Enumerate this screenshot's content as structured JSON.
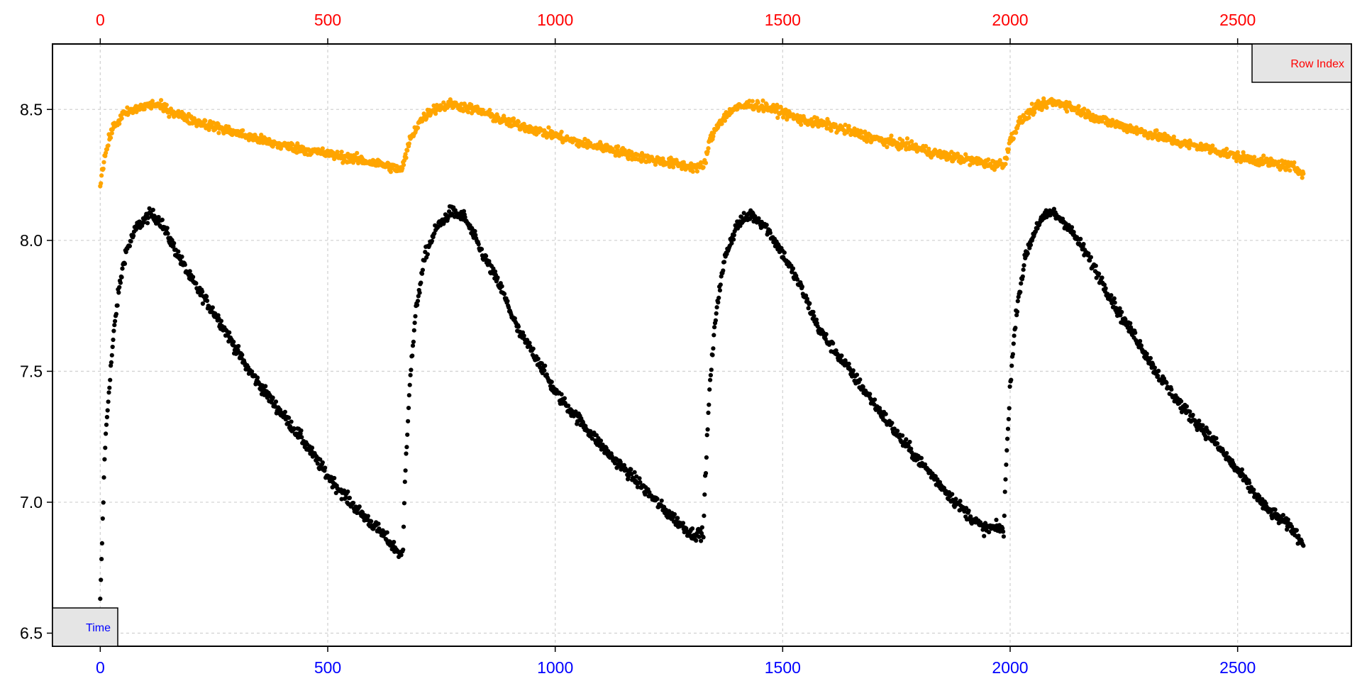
{
  "chart_data": {
    "type": "scatter",
    "title": "",
    "xlim": [
      -105,
      2750
    ],
    "ylim": [
      6.45,
      8.75
    ],
    "grid": true,
    "x_bottom": {
      "ticks": [
        0,
        500,
        1000,
        1500,
        2000,
        2500
      ],
      "color": "#0000ff",
      "label": "Time"
    },
    "x_top": {
      "ticks": [
        0,
        500,
        1000,
        1500,
        2000,
        2500
      ],
      "color": "#ff0000",
      "label": "Row Index"
    },
    "y_left": {
      "ticks": [
        "6.5",
        "7.0",
        "7.5",
        "8.0",
        "8.5"
      ]
    },
    "legend_boxes": [
      {
        "text": "Time",
        "placement": "bottom-left",
        "color": "#0000ff"
      },
      {
        "text": "Row Index",
        "placement": "top-right",
        "color": "#ff0000"
      }
    ],
    "series": [
      {
        "color": "#000000",
        "cycle_starts": [
          0,
          665,
          1325,
          1985
        ],
        "points": [
          [
            0,
            6.62
          ],
          [
            5,
            6.9
          ],
          [
            10,
            7.2
          ],
          [
            20,
            7.45
          ],
          [
            30,
            7.65
          ],
          [
            40,
            7.8
          ],
          [
            55,
            7.95
          ],
          [
            80,
            8.05
          ],
          [
            110,
            8.1
          ],
          [
            130,
            8.08
          ],
          [
            160,
            7.98
          ],
          [
            200,
            7.85
          ],
          [
            260,
            7.7
          ],
          [
            320,
            7.52
          ],
          [
            380,
            7.38
          ],
          [
            440,
            7.25
          ],
          [
            500,
            7.1
          ],
          [
            560,
            6.98
          ],
          [
            620,
            6.88
          ],
          [
            660,
            6.8
          ],
          [
            665,
            6.78
          ],
          [
            670,
            7.1
          ],
          [
            680,
            7.45
          ],
          [
            695,
            7.75
          ],
          [
            715,
            7.95
          ],
          [
            740,
            8.05
          ],
          [
            770,
            8.11
          ],
          [
            800,
            8.09
          ],
          [
            840,
            7.95
          ],
          [
            880,
            7.82
          ],
          [
            920,
            7.65
          ],
          [
            960,
            7.55
          ],
          [
            1000,
            7.42
          ],
          [
            1060,
            7.3
          ],
          [
            1120,
            7.18
          ],
          [
            1180,
            7.08
          ],
          [
            1240,
            6.97
          ],
          [
            1300,
            6.88
          ],
          [
            1325,
            6.84
          ],
          [
            1330,
            7.1
          ],
          [
            1340,
            7.45
          ],
          [
            1355,
            7.75
          ],
          [
            1375,
            7.95
          ],
          [
            1400,
            8.06
          ],
          [
            1430,
            8.1
          ],
          [
            1460,
            8.06
          ],
          [
            1500,
            7.95
          ],
          [
            1540,
            7.82
          ],
          [
            1580,
            7.66
          ],
          [
            1640,
            7.52
          ],
          [
            1700,
            7.38
          ],
          [
            1760,
            7.24
          ],
          [
            1820,
            7.12
          ],
          [
            1880,
            7.0
          ],
          [
            1940,
            6.9
          ],
          [
            1985,
            6.82
          ],
          [
            1990,
            7.1
          ],
          [
            2000,
            7.45
          ],
          [
            2015,
            7.75
          ],
          [
            2035,
            7.95
          ],
          [
            2060,
            8.06
          ],
          [
            2090,
            8.11
          ],
          [
            2120,
            8.07
          ],
          [
            2160,
            7.97
          ],
          [
            2200,
            7.85
          ],
          [
            2240,
            7.72
          ],
          [
            2280,
            7.62
          ],
          [
            2320,
            7.5
          ],
          [
            2380,
            7.36
          ],
          [
            2440,
            7.25
          ],
          [
            2500,
            7.12
          ],
          [
            2560,
            6.98
          ],
          [
            2620,
            6.9
          ],
          [
            2645,
            6.84
          ]
        ]
      },
      {
        "color": "#ffa500",
        "cycle_starts": [
          0,
          665,
          1325,
          1985
        ],
        "points": [
          [
            0,
            8.22
          ],
          [
            10,
            8.32
          ],
          [
            25,
            8.42
          ],
          [
            50,
            8.48
          ],
          [
            90,
            8.51
          ],
          [
            120,
            8.52
          ],
          [
            160,
            8.49
          ],
          [
            200,
            8.46
          ],
          [
            260,
            8.43
          ],
          [
            320,
            8.4
          ],
          [
            380,
            8.37
          ],
          [
            440,
            8.35
          ],
          [
            500,
            8.33
          ],
          [
            560,
            8.31
          ],
          [
            620,
            8.29
          ],
          [
            660,
            8.27
          ],
          [
            665,
            8.28
          ],
          [
            680,
            8.38
          ],
          [
            700,
            8.45
          ],
          [
            730,
            8.5
          ],
          [
            770,
            8.52
          ],
          [
            800,
            8.51
          ],
          [
            840,
            8.49
          ],
          [
            880,
            8.46
          ],
          [
            940,
            8.43
          ],
          [
            1000,
            8.4
          ],
          [
            1060,
            8.37
          ],
          [
            1120,
            8.35
          ],
          [
            1180,
            8.32
          ],
          [
            1240,
            8.3
          ],
          [
            1300,
            8.28
          ],
          [
            1325,
            8.27
          ],
          [
            1340,
            8.38
          ],
          [
            1360,
            8.45
          ],
          [
            1390,
            8.5
          ],
          [
            1430,
            8.52
          ],
          [
            1460,
            8.51
          ],
          [
            1500,
            8.49
          ],
          [
            1540,
            8.46
          ],
          [
            1600,
            8.44
          ],
          [
            1660,
            8.41
          ],
          [
            1720,
            8.38
          ],
          [
            1780,
            8.36
          ],
          [
            1840,
            8.33
          ],
          [
            1900,
            8.31
          ],
          [
            1960,
            8.29
          ],
          [
            1985,
            8.28
          ],
          [
            2000,
            8.38
          ],
          [
            2020,
            8.45
          ],
          [
            2050,
            8.5
          ],
          [
            2090,
            8.53
          ],
          [
            2120,
            8.52
          ],
          [
            2160,
            8.49
          ],
          [
            2200,
            8.46
          ],
          [
            2260,
            8.43
          ],
          [
            2320,
            8.4
          ],
          [
            2380,
            8.37
          ],
          [
            2440,
            8.35
          ],
          [
            2500,
            8.32
          ],
          [
            2560,
            8.3
          ],
          [
            2620,
            8.28
          ],
          [
            2645,
            8.26
          ]
        ]
      }
    ]
  }
}
